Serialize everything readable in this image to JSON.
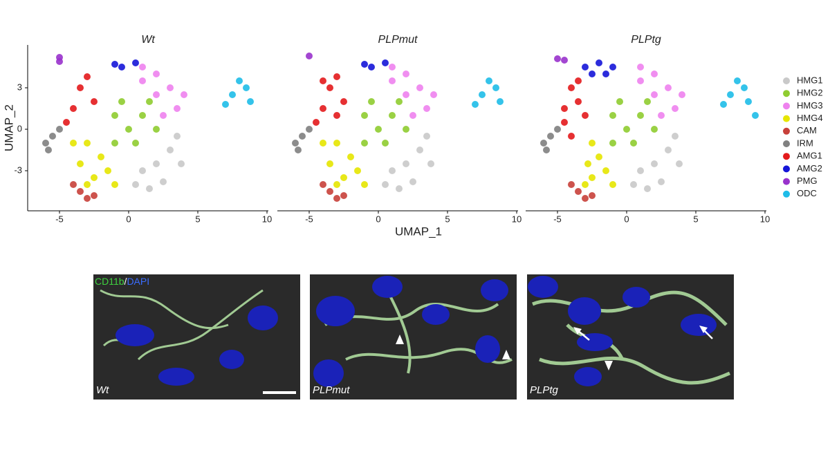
{
  "chart_data": [
    {
      "type": "scatter",
      "title": "Wt",
      "ylabel": "UMAP_2",
      "xlim": [
        -7.3,
        10.1
      ],
      "ylim": [
        -5.9,
        6.1
      ],
      "xticks": [
        -5,
        0,
        5,
        10
      ],
      "yticks": [
        -3,
        0,
        3
      ],
      "series": [
        {
          "name": "HMG1",
          "color": "#c9c9c9",
          "x": [
            1,
            2,
            3,
            2.5,
            0.5,
            3.5,
            1.5,
            3.8
          ],
          "y": [
            -3,
            -2.5,
            -1.5,
            -3.8,
            -4,
            -0.5,
            -4.3,
            -2.5
          ]
        },
        {
          "name": "HMG2",
          "color": "#8fcc30",
          "x": [
            0,
            1,
            -1,
            0.5,
            -1,
            2,
            1.5,
            -0.5
          ],
          "y": [
            0,
            1,
            1,
            -1,
            -1,
            0,
            2,
            2
          ]
        },
        {
          "name": "HMG3",
          "color": "#ee82ee",
          "x": [
            1,
            2,
            3,
            3.5,
            2,
            1,
            4,
            2.5
          ],
          "y": [
            3.5,
            4,
            3,
            1.5,
            2.5,
            4.5,
            2.5,
            1
          ]
        },
        {
          "name": "HMG4",
          "color": "#e6e600",
          "x": [
            -3,
            -2,
            -3.5,
            -1.5,
            -2.5,
            -4,
            -1,
            -3
          ],
          "y": [
            -1,
            -2,
            -2.5,
            -3,
            -3.5,
            -1,
            -4,
            -4
          ]
        },
        {
          "name": "CAM",
          "color": "#c8403a",
          "x": [
            -3.5,
            -3,
            -4,
            -2.5
          ],
          "y": [
            -4.5,
            -5,
            -4,
            -4.8
          ]
        },
        {
          "name": "IRM",
          "color": "#808080",
          "x": [
            -6,
            -5.5,
            -5.8,
            -5
          ],
          "y": [
            -1,
            -0.5,
            -1.5,
            0
          ]
        },
        {
          "name": "AMG1",
          "color": "#e31a1c",
          "x": [
            -4,
            -3.5,
            -2.5,
            -4.5,
            -3
          ],
          "y": [
            1.5,
            3,
            2,
            0.5,
            3.8
          ]
        },
        {
          "name": "AMG2",
          "color": "#1515d8",
          "x": [
            -0.5,
            0.5,
            -1
          ],
          "y": [
            4.5,
            4.8,
            4.7
          ]
        },
        {
          "name": "PMG",
          "color": "#9932cc",
          "x": [
            -5,
            -5
          ],
          "y": [
            5.2,
            4.9
          ]
        },
        {
          "name": "ODC",
          "color": "#1ebce8",
          "x": [
            7.5,
            8,
            7,
            8.8,
            8.5
          ],
          "y": [
            2.5,
            3.5,
            1.8,
            2,
            3
          ]
        }
      ]
    },
    {
      "type": "scatter",
      "title": "PLPmut",
      "xlabel": "UMAP_1",
      "xlim": [
        -7.3,
        10.1
      ],
      "ylim": [
        -5.9,
        6.1
      ],
      "xticks": [
        -5,
        0,
        5,
        10
      ],
      "series": [
        {
          "x": [
            1,
            2,
            3,
            2.5,
            0.5,
            3.5,
            1.5,
            3.8
          ],
          "y": [
            -3,
            -2.5,
            -1.5,
            -3.8,
            -4,
            -0.5,
            -4.3,
            -2.5
          ]
        },
        {
          "x": [
            0,
            1,
            -1,
            0.5,
            -1,
            2,
            1.5,
            -0.5
          ],
          "y": [
            0,
            1,
            1,
            -1,
            -1,
            0,
            2,
            2
          ]
        },
        {
          "x": [
            1,
            2,
            3,
            3.5,
            2,
            1,
            4,
            2.5
          ],
          "y": [
            3.5,
            4,
            3,
            1.5,
            2.5,
            4.5,
            2.5,
            1
          ]
        },
        {
          "x": [
            -3,
            -2,
            -3.5,
            -1.5,
            -2.5,
            -4,
            -1,
            -3
          ],
          "y": [
            -1,
            -2,
            -2.5,
            -3,
            -3.5,
            -1,
            -4,
            -4
          ]
        },
        {
          "x": [
            -3.5,
            -3,
            -4,
            -2.5
          ],
          "y": [
            -4.5,
            -5,
            -4,
            -4.8
          ]
        },
        {
          "x": [
            -6,
            -5.5,
            -5.8,
            -5
          ],
          "y": [
            -1,
            -0.5,
            -1.5,
            0
          ]
        },
        {
          "x": [
            -4,
            -3.5,
            -2.5,
            -4.5,
            -3,
            -4,
            -3
          ],
          "y": [
            1.5,
            3,
            2,
            0.5,
            3.8,
            3.5,
            1
          ]
        },
        {
          "x": [
            -0.5,
            0.5,
            -1
          ],
          "y": [
            4.5,
            4.8,
            4.7
          ]
        },
        {
          "x": [
            -5
          ],
          "y": [
            5.3
          ]
        },
        {
          "x": [
            7.5,
            8,
            7,
            8.8,
            8.5
          ],
          "y": [
            2.5,
            3.5,
            1.8,
            2,
            3
          ]
        }
      ]
    },
    {
      "type": "scatter",
      "title": "PLPtg",
      "xlim": [
        -7.3,
        10.1
      ],
      "ylim": [
        -5.9,
        6.1
      ],
      "xticks": [
        -5,
        0,
        5,
        10
      ],
      "series": [
        {
          "x": [
            1,
            2,
            3,
            2.5,
            0.5,
            3.5,
            1.5,
            3.8
          ],
          "y": [
            -3,
            -2.5,
            -1.5,
            -3.8,
            -4,
            -0.5,
            -4.3,
            -2.5
          ]
        },
        {
          "x": [
            0,
            1,
            -1,
            0.5,
            -1,
            2,
            1.5,
            -0.5
          ],
          "y": [
            0,
            1,
            1,
            -1,
            -1,
            0,
            2,
            2
          ]
        },
        {
          "x": [
            1,
            2,
            3,
            3.5,
            2,
            1,
            4,
            2.5
          ],
          "y": [
            3.5,
            4,
            3,
            1.5,
            2.5,
            4.5,
            2.5,
            1
          ]
        },
        {
          "x": [
            -2.5,
            -2,
            -2.8,
            -1.5,
            -2.5,
            -1,
            -3
          ],
          "y": [
            -1,
            -2,
            -2.5,
            -3,
            -3.5,
            -4,
            -4
          ]
        },
        {
          "x": [
            -3.5,
            -3,
            -4,
            -2.5
          ],
          "y": [
            -4.5,
            -5,
            -4,
            -4.8
          ]
        },
        {
          "x": [
            -6,
            -5.5,
            -5.8,
            -5
          ],
          "y": [
            -1,
            -0.5,
            -1.5,
            0
          ]
        },
        {
          "x": [
            -4.5,
            -4,
            -3.5,
            -4.5,
            -3.5,
            -4,
            -3
          ],
          "y": [
            1.5,
            3,
            2,
            0.5,
            3.5,
            -0.5,
            1
          ]
        },
        {
          "x": [
            -3,
            -2,
            -1,
            -2.5,
            -1.5
          ],
          "y": [
            4.5,
            4.8,
            4.5,
            4,
            4
          ]
        },
        {
          "x": [
            -5,
            -4.5
          ],
          "y": [
            5.1,
            5
          ]
        },
        {
          "x": [
            7.5,
            8,
            7,
            8.8,
            8.5,
            9.3
          ],
          "y": [
            2.5,
            3.5,
            1.8,
            2,
            3,
            1
          ]
        }
      ]
    }
  ],
  "images": {
    "stain": {
      "marker": "CD11b",
      "separator": "/",
      "nucleus": "DAPI"
    },
    "labels": [
      "Wt",
      "PLPmut",
      "PLPtg"
    ]
  }
}
